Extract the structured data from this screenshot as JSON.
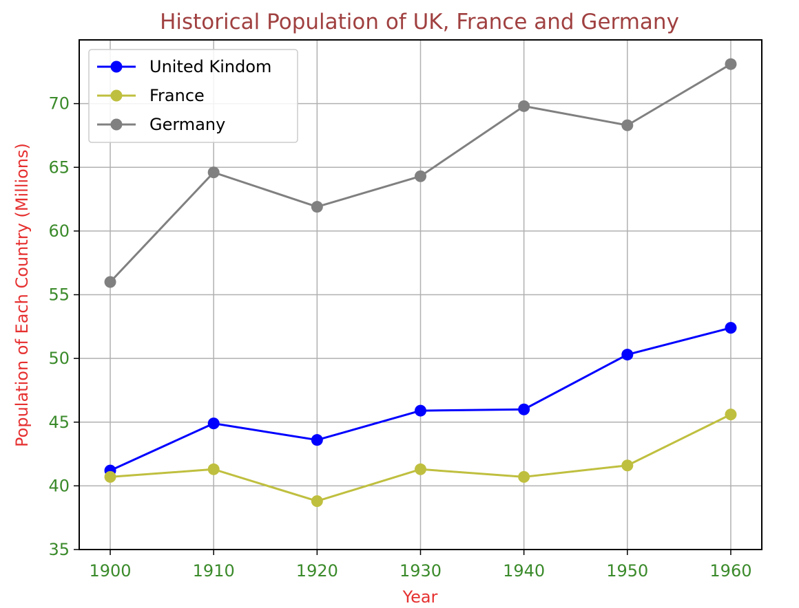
{
  "chart_data": {
    "type": "line",
    "title": "Historical Population of UK, France and Germany",
    "xlabel": "Year",
    "ylabel": "Population of Each Country (Millions)",
    "x": [
      1900,
      1910,
      1920,
      1930,
      1940,
      1950,
      1960
    ],
    "xlim": [
      1897,
      1963
    ],
    "ylim": [
      35,
      75
    ],
    "xticks": [
      1900,
      1910,
      1920,
      1930,
      1940,
      1950,
      1960
    ],
    "yticks": [
      35,
      40,
      45,
      50,
      55,
      60,
      65,
      70
    ],
    "grid": true,
    "legend_position": "top-left",
    "series": [
      {
        "name": "United Kindom",
        "color": "#0000ff",
        "values": [
          41.2,
          44.9,
          43.6,
          45.9,
          46.0,
          50.3,
          52.4
        ]
      },
      {
        "name": "France",
        "color": "#bfbf3f",
        "values": [
          40.7,
          41.3,
          38.8,
          41.3,
          40.7,
          41.6,
          45.6
        ]
      },
      {
        "name": "Germany",
        "color": "#808080",
        "values": [
          56.0,
          64.6,
          61.9,
          64.3,
          69.8,
          68.3,
          73.1
        ]
      }
    ],
    "colors": {
      "title": "#a04040",
      "axis_label": "#e63030",
      "tick_label": "#3a8a2a",
      "grid": "#b0b0b0"
    }
  }
}
